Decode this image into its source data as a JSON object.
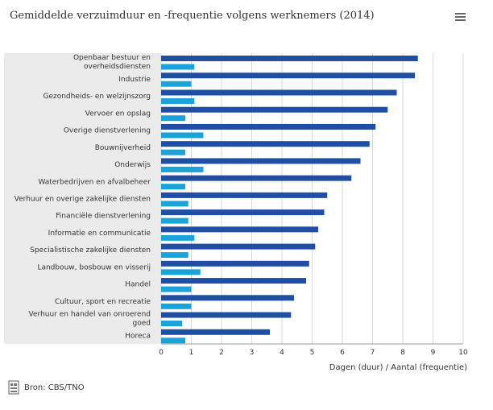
{
  "title": "Gemiddelde verzuimduur en -frequentie volgens werknemers (2014)",
  "menu_icon": "hamburger-menu-icon",
  "source": {
    "icon": "source-document-icon",
    "label": "Bron: CBS/TNO"
  },
  "colors": {
    "duur": "#1f4fa3",
    "frequentie": "#1aa3d9",
    "panel": "#ebebeb",
    "grid": "#d9d9d9"
  },
  "chart_data": {
    "type": "bar",
    "orientation": "horizontal",
    "categories": [
      [
        "Openbaar bestuur en",
        "overheidsdiensten"
      ],
      [
        "Industrie"
      ],
      [
        "Gezondheids- en welzijnszorg"
      ],
      [
        "Vervoer en opslag"
      ],
      [
        "Overige dienstverlening"
      ],
      [
        "Bouwnijverheid"
      ],
      [
        "Onderwijs"
      ],
      [
        "Waterbedrijven en afvalbeheer"
      ],
      [
        "Verhuur en overige zakelijke diensten"
      ],
      [
        "Financiële dienstverlening"
      ],
      [
        "Informatie en communicatie"
      ],
      [
        "Specialistische zakelijke diensten"
      ],
      [
        "Landbouw, bosbouw en visserij"
      ],
      [
        "Handel"
      ],
      [
        "Cultuur, sport en recreatie"
      ],
      [
        "Verhuur en handel van onroerend",
        "goed"
      ],
      [
        "Horeca"
      ]
    ],
    "series": [
      {
        "values": [
          8.5,
          8.4,
          7.8,
          7.5,
          7.1,
          6.9,
          6.6,
          6.3,
          5.5,
          5.4,
          5.2,
          5.1,
          4.9,
          4.8,
          4.4,
          4.3,
          3.6
        ]
      },
      {
        "values": [
          1.1,
          1.0,
          1.1,
          0.8,
          1.4,
          0.8,
          1.4,
          0.8,
          0.9,
          0.9,
          1.1,
          0.9,
          1.3,
          1.0,
          1.0,
          0.7,
          0.8
        ]
      }
    ],
    "xlim": [
      0,
      10
    ],
    "xticks": [
      0,
      1,
      2,
      3,
      4,
      5,
      6,
      7,
      8,
      9,
      10
    ],
    "xlabel": "Dagen (duur) / Aantal (frequentie)",
    "grid": true
  }
}
